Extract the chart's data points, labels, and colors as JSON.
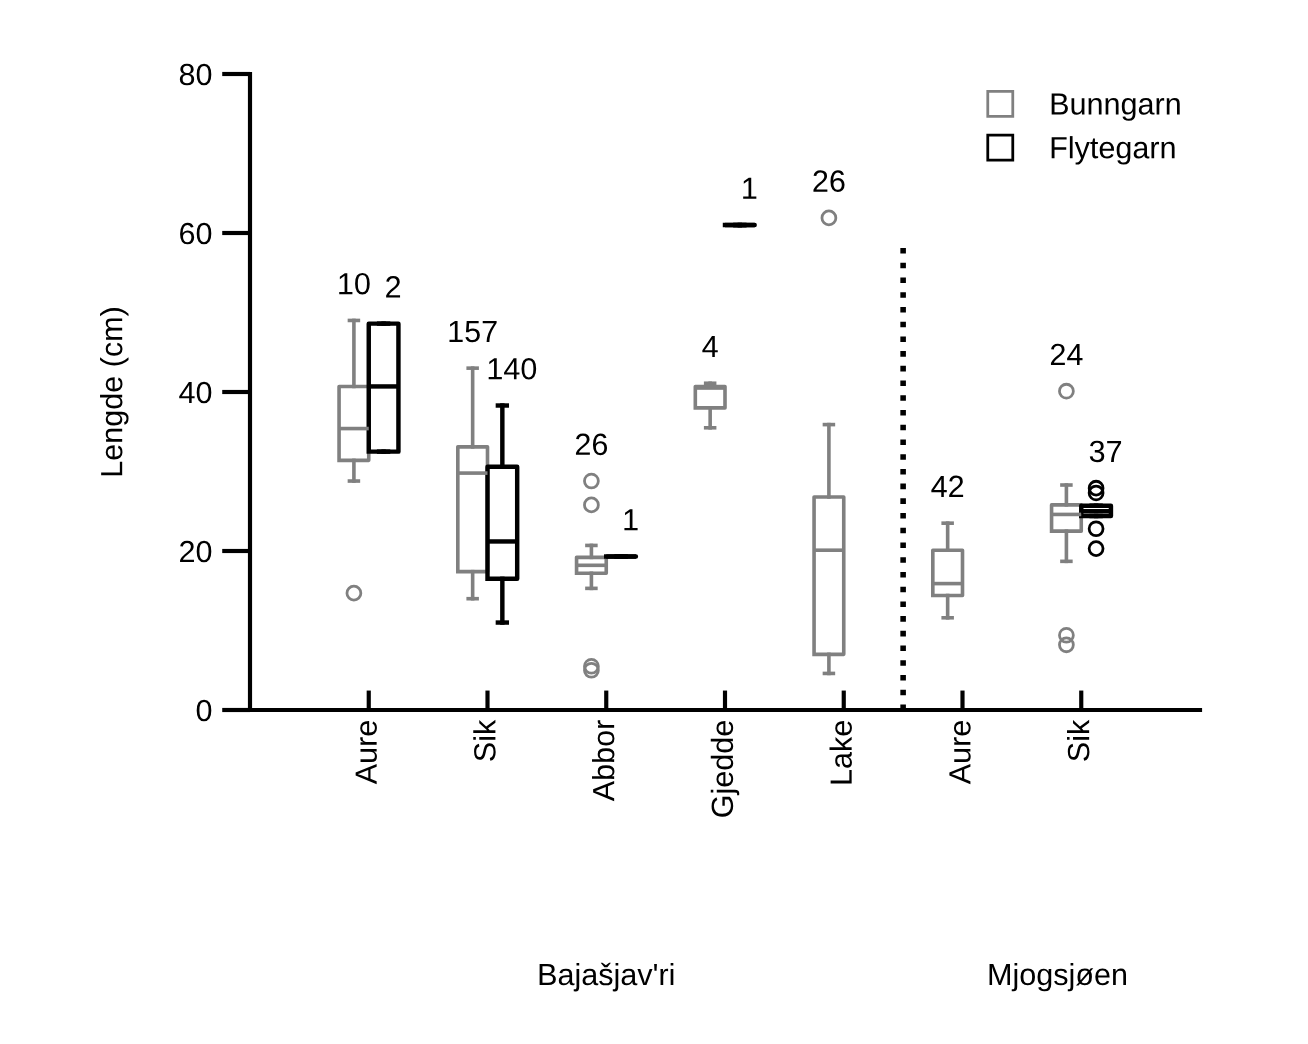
{
  "chart_data": {
    "type": "box",
    "ylabel": "Lengde (cm)",
    "categories": [
      "Aure",
      "Sik",
      "Abbor",
      "Gjedde",
      "Lake",
      "Aure",
      "Sik"
    ],
    "ylim": [
      0,
      80
    ],
    "yticks": [
      0,
      20,
      40,
      60,
      80
    ],
    "grid": false,
    "legend": "top right",
    "series": [
      {
        "name": "Bunngarn",
        "color": "#808080",
        "value_labels": [
          "10",
          "157",
          "26",
          "4",
          "26",
          "42",
          "24"
        ],
        "boxes": [
          {
            "low": 28.8,
            "q1": 31.4,
            "median": 35.4,
            "q3": 40.7,
            "high": 49,
            "outliers": [
              14.7
            ]
          },
          {
            "low": 14,
            "q1": 17.4,
            "median": 29.8,
            "q3": 33.1,
            "high": 43
          },
          {
            "low": 15.3,
            "q1": 17.2,
            "median": 18.2,
            "q3": 19.2,
            "high": 20.7,
            "outliers": [
              28.8,
              25.8,
              5.5,
              5
            ]
          },
          {
            "low": 35.5,
            "q1": 38,
            "median": 40.5,
            "q3": 40.7,
            "high": 41.1
          },
          {
            "low": 4.6,
            "q1": 7,
            "median": 20.1,
            "q3": 26.8,
            "high": 35.9,
            "outliers": [
              61.9
            ]
          },
          {
            "low": 11.6,
            "q1": 14.4,
            "median": 15.9,
            "q3": 20.1,
            "high": 23.5
          },
          {
            "low": 18.7,
            "q1": 22.5,
            "median": 24.6,
            "q3": 25.8,
            "high": 28.3,
            "outliers": [
              40.1,
              9.4,
              8.2
            ]
          }
        ]
      },
      {
        "name": "Flytegarn",
        "color": "#000000",
        "value_labels": [
          "2",
          "140",
          "1",
          "1",
          null,
          null,
          "37"
        ],
        "boxes": [
          {
            "low": 32.5,
            "q1": 32.5,
            "median": 40.7,
            "q3": 48.6,
            "high": 48.6
          },
          {
            "low": 11,
            "q1": 16.5,
            "median": 21.2,
            "q3": 30.6,
            "high": 38.3
          },
          {
            "low": 19.3,
            "q1": 19.3,
            "median": 19.3,
            "q3": 19.3,
            "high": 19.3
          },
          {
            "low": 61,
            "q1": 61,
            "median": 61,
            "q3": 61,
            "high": 61
          },
          null,
          null,
          {
            "low": 24.4,
            "q1": 24.4,
            "median": 25,
            "q3": 25.7,
            "high": 25.7,
            "outliers": [
              27.9,
              27.3,
              22.8,
              20.3
            ]
          }
        ]
      }
    ],
    "annotations": [
      "Bajašjav'ri",
      "Mjogsjøen"
    ]
  }
}
